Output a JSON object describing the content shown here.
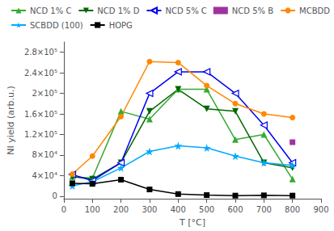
{
  "chart_data": {
    "type": "line",
    "xlabel": "T [°C]",
    "ylabel": "NI yield (arb.u.)",
    "xlim": [
      0,
      900
    ],
    "ylim": [
      -5000,
      300000
    ],
    "xticks": [
      0,
      100,
      200,
      300,
      400,
      500,
      600,
      700,
      800,
      900
    ],
    "yticks": [
      0,
      {
        "value": 40000,
        "label": "4×10⁴"
      },
      {
        "value": 80000,
        "label": "8×10⁴"
      },
      {
        "value": 120000,
        "label": "1.2×10⁵"
      },
      {
        "value": 160000,
        "label": "1.6×10⁵"
      },
      {
        "value": 200000,
        "label": "2×10⁵"
      },
      {
        "value": 240000,
        "label": "2.4×10⁵"
      },
      {
        "value": 280000,
        "label": "2.8×10⁵"
      }
    ],
    "grid": false,
    "legend": "upper left",
    "series": [
      {
        "name": "NCD 1% C",
        "color": "#33aa33",
        "marker": "triangle-up",
        "line_style": "solid",
        "x": [
          30,
          100,
          200,
          300,
          400,
          500,
          600,
          700,
          800
        ],
        "values": [
          38000,
          35000,
          165000,
          150000,
          208000,
          208000,
          110000,
          120000,
          33000
        ]
      },
      {
        "name": "NCD 1% D",
        "color": "#006600",
        "marker": "triangle-down",
        "line_style": "solid",
        "x": [
          30,
          100,
          200,
          300,
          400,
          500,
          600,
          700,
          800
        ],
        "values": [
          38000,
          33000,
          65000,
          165000,
          208000,
          170000,
          165000,
          65000,
          55000
        ]
      },
      {
        "name": "NCD 5% C",
        "color": "#0000ee",
        "marker": "hollow triangle-left",
        "line_style": "solid",
        "x": [
          30,
          100,
          200,
          300,
          400,
          500,
          600,
          700,
          800
        ],
        "values": [
          42000,
          30000,
          65000,
          200000,
          242000,
          242000,
          200000,
          138000,
          65000
        ]
      },
      {
        "name": "NCD 5% B",
        "color": "#880088",
        "marker": "square",
        "line_style": "none",
        "x": [
          800
        ],
        "values": [
          105000
        ]
      },
      {
        "name": "MCBDD",
        "color": "#ff8800",
        "marker": "circle",
        "line_style": "solid",
        "x": [
          30,
          100,
          200,
          300,
          400,
          500,
          600,
          700,
          800
        ],
        "values": [
          43000,
          78000,
          155000,
          262000,
          260000,
          215000,
          180000,
          160000,
          153000
        ]
      },
      {
        "name": "SCBDD (100)",
        "color": "#00aaff",
        "marker": "star",
        "line_style": "solid",
        "x": [
          30,
          100,
          200,
          300,
          400,
          500,
          600,
          700,
          800
        ],
        "values": [
          20000,
          28000,
          55000,
          87000,
          98000,
          94000,
          78000,
          65000,
          60000
        ]
      },
      {
        "name": "HOPG",
        "color": "#000000",
        "marker": "square",
        "line_style": "solid",
        "x": [
          30,
          100,
          200,
          300,
          400,
          500,
          600,
          700,
          800
        ],
        "values": [
          25000,
          24000,
          32000,
          13000,
          4000,
          2000,
          1000,
          1500,
          1000
        ]
      }
    ]
  }
}
